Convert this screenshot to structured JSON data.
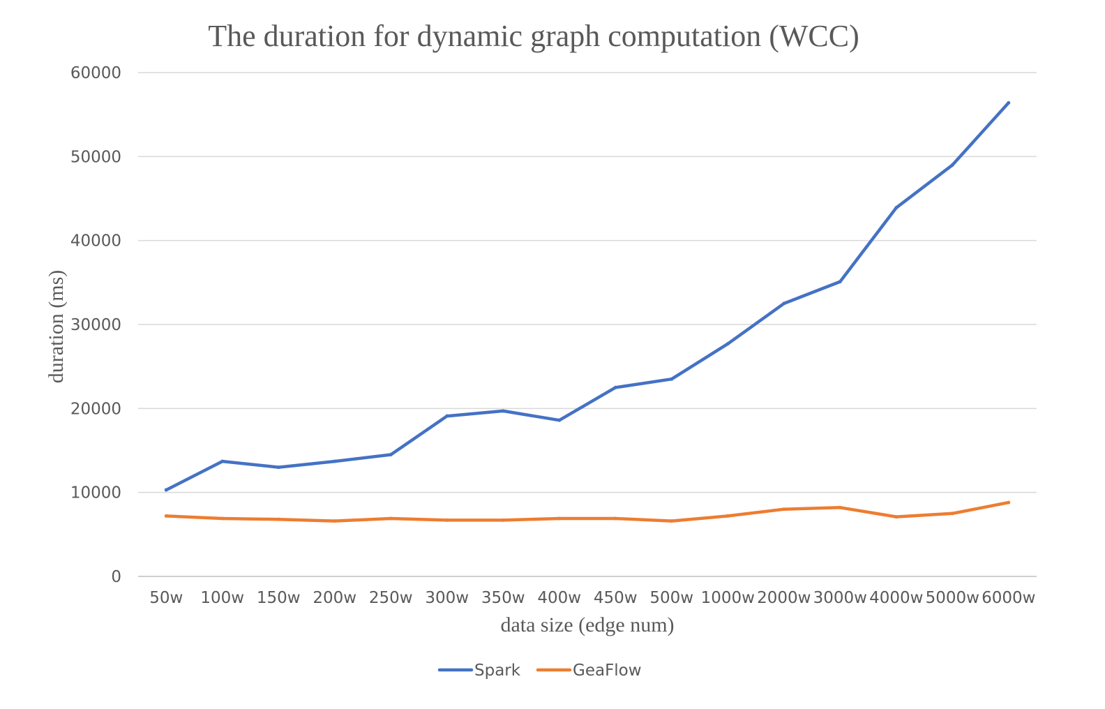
{
  "chart_data": {
    "type": "line",
    "title": "The duration for dynamic graph computation (WCC)",
    "xlabel": "data size (edge num)",
    "ylabel": "duration (ms)",
    "ylim": [
      0,
      60000
    ],
    "yticks": [
      0,
      10000,
      20000,
      30000,
      40000,
      50000,
      60000
    ],
    "ytick_labels": [
      "0",
      "10000",
      "20000",
      "30000",
      "40000",
      "50000",
      "60000"
    ],
    "grid": true,
    "legend_position": "bottom",
    "categories": [
      "50w",
      "100w",
      "150w",
      "200w",
      "250w",
      "300w",
      "350w",
      "400w",
      "450w",
      "500w",
      "1000w",
      "2000w",
      "3000w",
      "4000w",
      "5000w",
      "6000w"
    ],
    "series": [
      {
        "name": "Spark",
        "color": "#4472C4",
        "values": [
          10300,
          13700,
          13000,
          13700,
          14500,
          19100,
          19700,
          18600,
          22500,
          23500,
          27700,
          32500,
          35100,
          43900,
          49000,
          56400
        ]
      },
      {
        "name": "GeaFlow",
        "color": "#ED7D31",
        "values": [
          7200,
          6900,
          6800,
          6600,
          6900,
          6700,
          6700,
          6900,
          6900,
          6600,
          7200,
          8000,
          8200,
          7100,
          7500,
          8800
        ]
      }
    ]
  }
}
